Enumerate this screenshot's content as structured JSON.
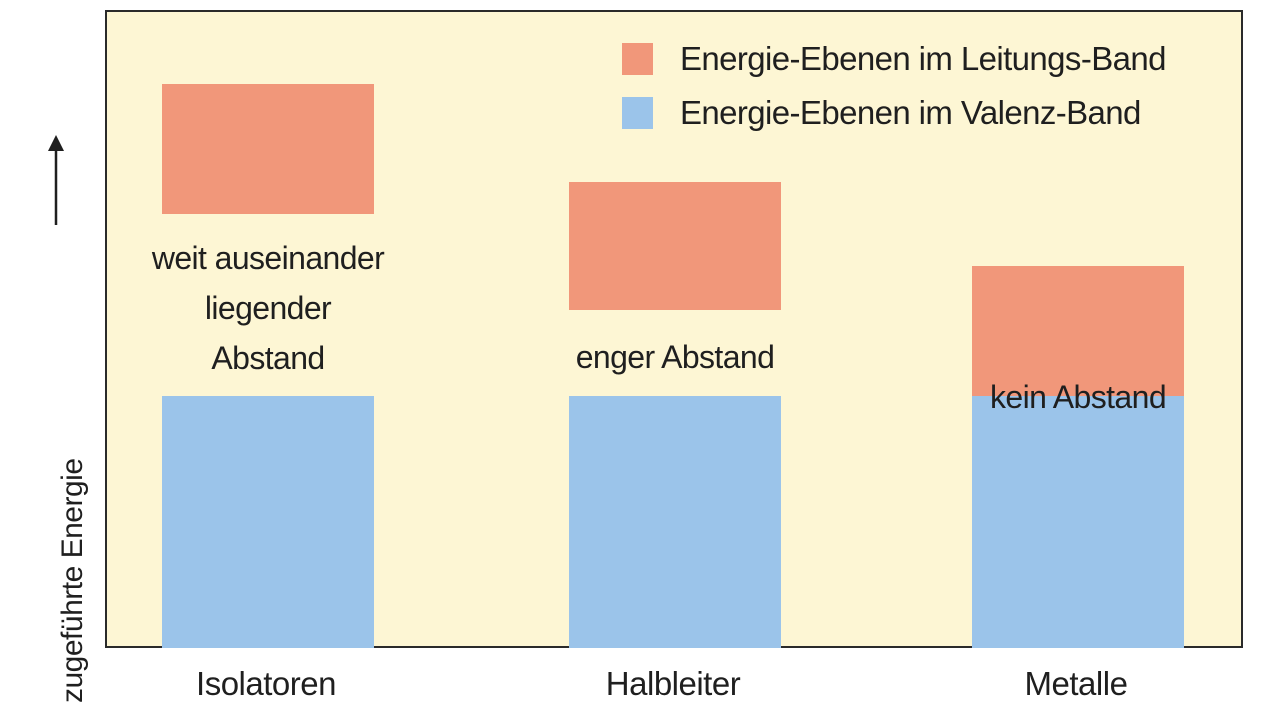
{
  "colors": {
    "background": "#fdf6d4",
    "conduction_band": "#f1977a",
    "valence_band": "#9bc4ea",
    "frame": "#2a2a2a"
  },
  "axis": {
    "ylabel": "zugeführte Energie",
    "arrow_icon": "arrow-up-icon"
  },
  "legend": [
    {
      "label": "Energie-Ebenen im Leitungs-Band",
      "color": "#f1977a"
    },
    {
      "label": "Energie-Ebenen im Valenz-Band",
      "color": "#9bc4ea"
    }
  ],
  "materials": [
    {
      "name": "Isolatoren",
      "note_lines": [
        "weit auseinander",
        "liegender",
        "Abstand"
      ]
    },
    {
      "name": "Halbleiter",
      "note_lines": [
        "enger Abstand"
      ]
    },
    {
      "name": "Metalle",
      "note_lines": [
        "kein Abstand"
      ]
    }
  ]
}
